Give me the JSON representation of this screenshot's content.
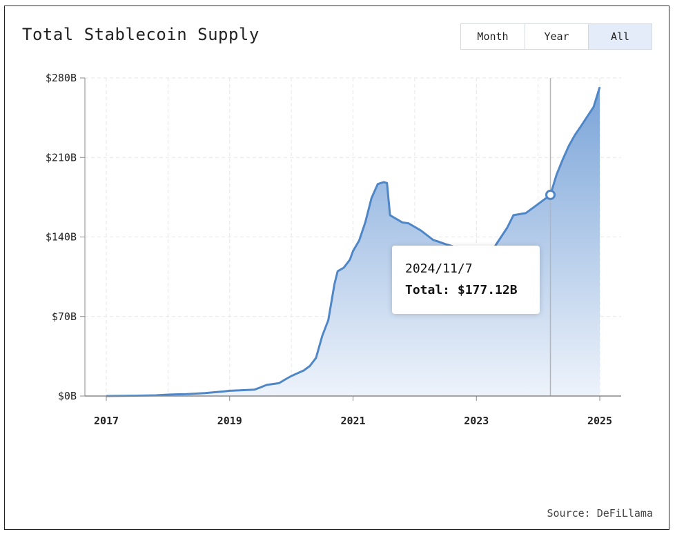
{
  "title": "Total Stablecoin Supply",
  "range_buttons": [
    {
      "label": "Month",
      "active": false
    },
    {
      "label": "Year",
      "active": false
    },
    {
      "label": "All",
      "active": true
    }
  ],
  "tooltip": {
    "date": "2024/11/7",
    "total_label": "Total:",
    "total_value": "$177.12B"
  },
  "source": "Source: DeFiLlama",
  "colors": {
    "line": "#4f86c6",
    "fill_top": "#7aa4d8",
    "fill_bottom": "#eef3fb",
    "grid": "#e6e6e6",
    "axis": "#888888",
    "crosshair": "#b5b5b5",
    "active_button": "#e4ecf9"
  },
  "chart_data": {
    "type": "area",
    "title": "Total Stablecoin Supply",
    "xlabel": "",
    "ylabel": "",
    "x_ticks": [
      "2017",
      "2019",
      "2021",
      "2023",
      "2025"
    ],
    "y_ticks": [
      "$0B",
      "$70B",
      "$140B",
      "$210B",
      "$280B"
    ],
    "ylim": [
      0,
      280
    ],
    "xlim": [
      2017,
      2025
    ],
    "grid": true,
    "series": [
      {
        "values_unit": "billions USD",
        "points": [
          [
            2017.0,
            0
          ],
          [
            2017.5,
            0.3
          ],
          [
            2017.8,
            0.6
          ],
          [
            2018.0,
            1.2
          ],
          [
            2018.3,
            1.7
          ],
          [
            2018.6,
            2.6
          ],
          [
            2018.9,
            4.0
          ],
          [
            2019.0,
            4.6
          ],
          [
            2019.2,
            5.1
          ],
          [
            2019.4,
            5.6
          ],
          [
            2019.5,
            7.6
          ],
          [
            2019.6,
            9.8
          ],
          [
            2019.8,
            11.3
          ],
          [
            2019.9,
            14.6
          ],
          [
            2020.0,
            17.6
          ],
          [
            2020.2,
            22.5
          ],
          [
            2020.3,
            26.4
          ],
          [
            2020.4,
            33.6
          ],
          [
            2020.5,
            52.8
          ],
          [
            2020.6,
            66.9
          ],
          [
            2020.7,
            98.8
          ],
          [
            2020.75,
            109.8
          ],
          [
            2020.85,
            113.0
          ],
          [
            2020.95,
            120.1
          ],
          [
            2021.0,
            127.6
          ],
          [
            2021.1,
            136.9
          ],
          [
            2021.2,
            153.2
          ],
          [
            2021.3,
            174.3
          ],
          [
            2021.4,
            186.6
          ],
          [
            2021.45,
            187.5
          ],
          [
            2021.5,
            188.3
          ],
          [
            2021.55,
            187.5
          ],
          [
            2021.6,
            159.2
          ],
          [
            2021.8,
            152.8
          ],
          [
            2021.9,
            152.0
          ],
          [
            2022.1,
            145.7
          ],
          [
            2022.3,
            137.4
          ],
          [
            2022.4,
            135.6
          ],
          [
            2022.5,
            133.7
          ],
          [
            2022.6,
            132.1
          ],
          [
            2022.7,
            129.5
          ],
          [
            2022.9,
            126.2
          ],
          [
            2023.0,
            124.4
          ],
          [
            2023.1,
            127.6
          ],
          [
            2023.3,
            131.8
          ],
          [
            2023.5,
            148.2
          ],
          [
            2023.6,
            159.2
          ],
          [
            2023.8,
            161.0
          ],
          [
            2024.0,
            169.0
          ],
          [
            2024.2,
            177.12
          ],
          [
            2024.3,
            194.9
          ],
          [
            2024.4,
            208.3
          ],
          [
            2024.5,
            220.4
          ],
          [
            2024.6,
            230.0
          ],
          [
            2024.7,
            238.0
          ],
          [
            2024.8,
            246.2
          ],
          [
            2024.9,
            254.5
          ],
          [
            2025.0,
            272.0
          ]
        ]
      }
    ],
    "highlight": {
      "x": 2024.2,
      "y": 177.12,
      "date": "2024/11/7"
    }
  }
}
